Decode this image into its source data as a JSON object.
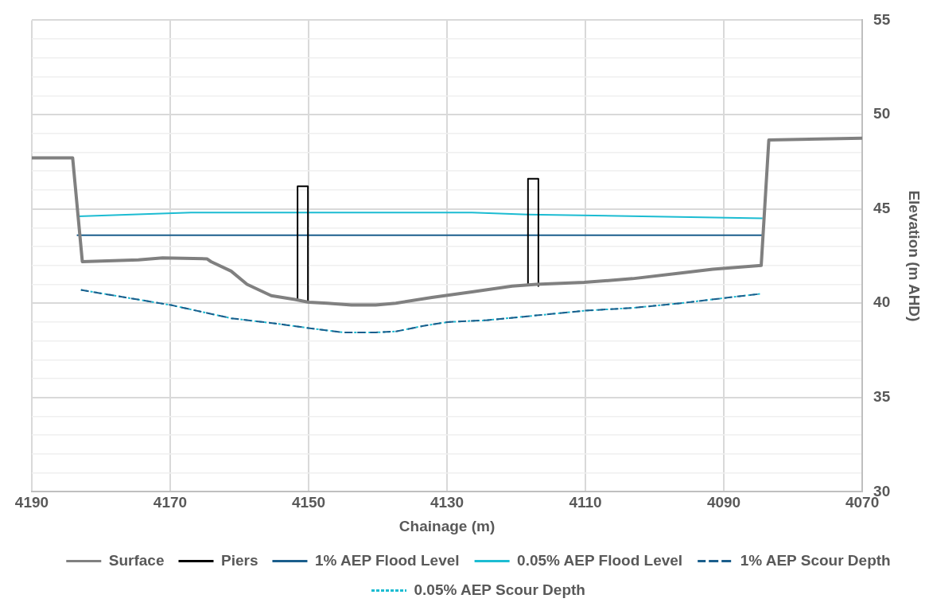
{
  "chart_data": {
    "type": "line",
    "xlabel": "Chainage (m)",
    "ylabel": "Elevation (m AHD)",
    "xlim": [
      4190,
      4070
    ],
    "xticks": [
      4190,
      4170,
      4150,
      4130,
      4110,
      4090,
      4070
    ],
    "ylim": [
      30,
      55
    ],
    "yticks": [
      30,
      {
        "value": 31,
        "label": null
      },
      {
        "value": 32,
        "label": null
      },
      {
        "value": 33,
        "label": null
      },
      {
        "value": 34,
        "label": null
      },
      35,
      {
        "value": 36,
        "label": null
      },
      {
        "value": 37,
        "label": null
      },
      {
        "value": 38,
        "label": null
      },
      {
        "value": 39,
        "label": null
      },
      40,
      {
        "value": 41,
        "label": null
      },
      {
        "value": 42,
        "label": null
      },
      {
        "value": 43,
        "label": null
      },
      {
        "value": 44,
        "label": null
      },
      45,
      {
        "value": 46,
        "label": null
      },
      {
        "value": 47,
        "label": null
      },
      {
        "value": 48,
        "label": null
      },
      {
        "value": 49,
        "label": null
      },
      50,
      {
        "value": 51,
        "label": null
      },
      {
        "value": 52,
        "label": null
      },
      {
        "value": 53,
        "label": null
      },
      {
        "value": 54,
        "label": null
      },
      55
    ],
    "grid": true,
    "legend": "bottom",
    "marker": "none",
    "series": [
      {
        "name": "Surface",
        "color": "#808080",
        "line_style": "solid",
        "x": [
          4190,
          4184.1,
          4182.7,
          4174.6,
          4171.1,
          4164.7,
          4164.1,
          4161.2,
          4158.9,
          4155.4,
          4152,
          4150,
          4147.3,
          4143.8,
          4140.3,
          4137.4,
          4132.2,
          4126.4,
          4120.6,
          4117.1,
          4110.2,
          4103.2,
          4096.2,
          4091.6,
          4084.6,
          4083.5,
          4070
        ],
        "values": [
          47.7,
          47.7,
          42.2,
          42.3,
          42.4,
          42.35,
          42.2,
          41.7,
          41,
          40.4,
          40.2,
          40.05,
          40,
          39.9,
          39.9,
          40,
          40.3,
          40.6,
          40.9,
          41,
          41.1,
          41.3,
          41.6,
          41.8,
          42,
          48.65,
          48.75
        ]
      },
      {
        "name": "Piers",
        "color": "#000000",
        "line_style": "solid",
        "x": [
          4151.6,
          4151.6,
          4150.1,
          4150.1,
          4134,
          4118.3,
          4118.3,
          4116.8,
          4116.8
        ],
        "values": [
          40.1,
          46.2,
          46.2,
          40.1,
          null,
          40.9,
          46.6,
          46.6,
          40.9
        ]
      },
      {
        "name": "1% AEP Flood Level",
        "color": "#1b5e8c",
        "line_style": "solid",
        "x": [
          4183.5,
          4084.2
        ],
        "values": [
          43.6,
          43.6
        ]
      },
      {
        "name": "0.05% AEP Flood Level",
        "color": "#1cbcd2",
        "line_style": "solid",
        "x": [
          4183.3,
          4167,
          4126.4,
          4118.3,
          4084.4
        ],
        "values": [
          44.6,
          44.8,
          44.8,
          44.7,
          44.5
        ]
      },
      {
        "name": "1% AEP Scour Depth",
        "color": "#1b5e8c",
        "line_style": "dashed",
        "x": [
          4182.9,
          4169.9,
          4161.2,
          4154.3,
          4149.6,
          4145,
          4140.3,
          4137.4,
          4133.4,
          4129.9,
          4124.1,
          4117.1,
          4110.2,
          4103.2,
          4096.2,
          4089.3,
          4084.6
        ],
        "values": [
          40.7,
          39.9,
          39.2,
          38.9,
          38.66,
          38.45,
          38.45,
          38.5,
          38.8,
          39,
          39.1,
          39.35,
          39.6,
          39.75,
          40,
          40.3,
          40.5
        ]
      },
      {
        "name": "0.05% AEP Scour Depth",
        "color": "#1cbcd2",
        "line_style": "dotted",
        "x": [
          4182.9,
          4169.9,
          4161.2,
          4154.3,
          4149.6,
          4145,
          4140.3,
          4137.4,
          4133.4,
          4129.9,
          4124.1,
          4117.1,
          4110.2,
          4103.2,
          4096.2,
          4089.3,
          4084.6
        ],
        "values": [
          40.7,
          39.9,
          39.2,
          38.9,
          38.66,
          38.45,
          38.45,
          38.5,
          38.8,
          39,
          39.1,
          39.35,
          39.6,
          39.75,
          40,
          40.3,
          40.5
        ]
      }
    ]
  }
}
